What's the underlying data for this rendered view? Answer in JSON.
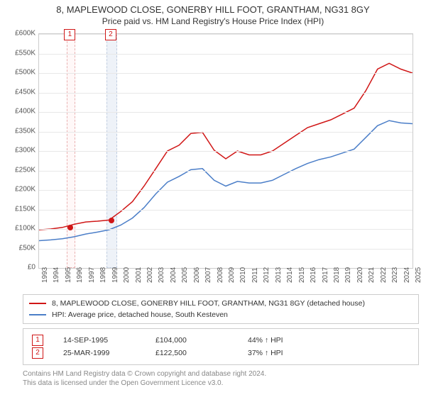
{
  "title": {
    "line1": "8, MAPLEWOOD CLOSE, GONERBY HILL FOOT, GRANTHAM, NG31 8GY",
    "line2": "Price paid vs. HM Land Registry's House Price Index (HPI)"
  },
  "chart": {
    "type": "line",
    "background_color": "#ffffff",
    "grid_color": "#e8e8e8",
    "border_color": "#cccccc",
    "x_years": [
      1993,
      1994,
      1995,
      1996,
      1997,
      1998,
      1999,
      2000,
      2001,
      2002,
      2003,
      2004,
      2005,
      2006,
      2007,
      2008,
      2009,
      2010,
      2011,
      2012,
      2013,
      2014,
      2015,
      2016,
      2017,
      2018,
      2019,
      2020,
      2021,
      2022,
      2023,
      2024,
      2025
    ],
    "ylim": [
      0,
      600
    ],
    "ytick_step": 50,
    "ytick_prefix": "£",
    "ytick_suffix": "K",
    "series": [
      {
        "id": "property",
        "label": "8, MAPLEWOOD CLOSE, GONERBY HILL FOOT, GRANTHAM, NG31 8GY (detached house)",
        "color": "#d01616",
        "line_width": 1.5,
        "values": [
          98,
          100,
          104,
          112,
          118,
          120,
          123,
          145,
          170,
          210,
          255,
          300,
          315,
          345,
          348,
          302,
          280,
          300,
          290,
          290,
          300,
          320,
          340,
          360,
          370,
          380,
          395,
          410,
          455,
          510,
          525,
          510,
          500
        ]
      },
      {
        "id": "hpi",
        "label": "HPI: Average price, detached house, South Kesteven",
        "color": "#4b7ec8",
        "line_width": 1.5,
        "values": [
          70,
          72,
          75,
          80,
          87,
          92,
          98,
          110,
          128,
          155,
          190,
          220,
          235,
          252,
          255,
          225,
          210,
          222,
          218,
          218,
          225,
          240,
          255,
          268,
          278,
          285,
          295,
          305,
          335,
          365,
          378,
          372,
          370
        ]
      }
    ],
    "markers": [
      {
        "n": "1",
        "year": 1995.7,
        "band_width_years": 0.6
      },
      {
        "n": "2",
        "year": 1999.2,
        "band_width_years": 0.8
      }
    ],
    "sale_dots": [
      {
        "year": 1995.7,
        "value": 104
      },
      {
        "year": 1999.2,
        "value": 122.5
      }
    ]
  },
  "legend": {
    "rows": [
      {
        "color": "#d01616",
        "text": "8, MAPLEWOOD CLOSE, GONERBY HILL FOOT, GRANTHAM, NG31 8GY (detached house)"
      },
      {
        "color": "#4b7ec8",
        "text": "HPI: Average price, detached house, South Kesteven"
      }
    ]
  },
  "sales": [
    {
      "n": "1",
      "date": "14-SEP-1995",
      "price": "£104,000",
      "delta": "44% ↑ HPI"
    },
    {
      "n": "2",
      "date": "25-MAR-1999",
      "price": "£122,500",
      "delta": "37% ↑ HPI"
    }
  ],
  "footer": {
    "l1": "Contains HM Land Registry data © Crown copyright and database right 2024.",
    "l2": "This data is licensed under the Open Government Licence v3.0."
  }
}
